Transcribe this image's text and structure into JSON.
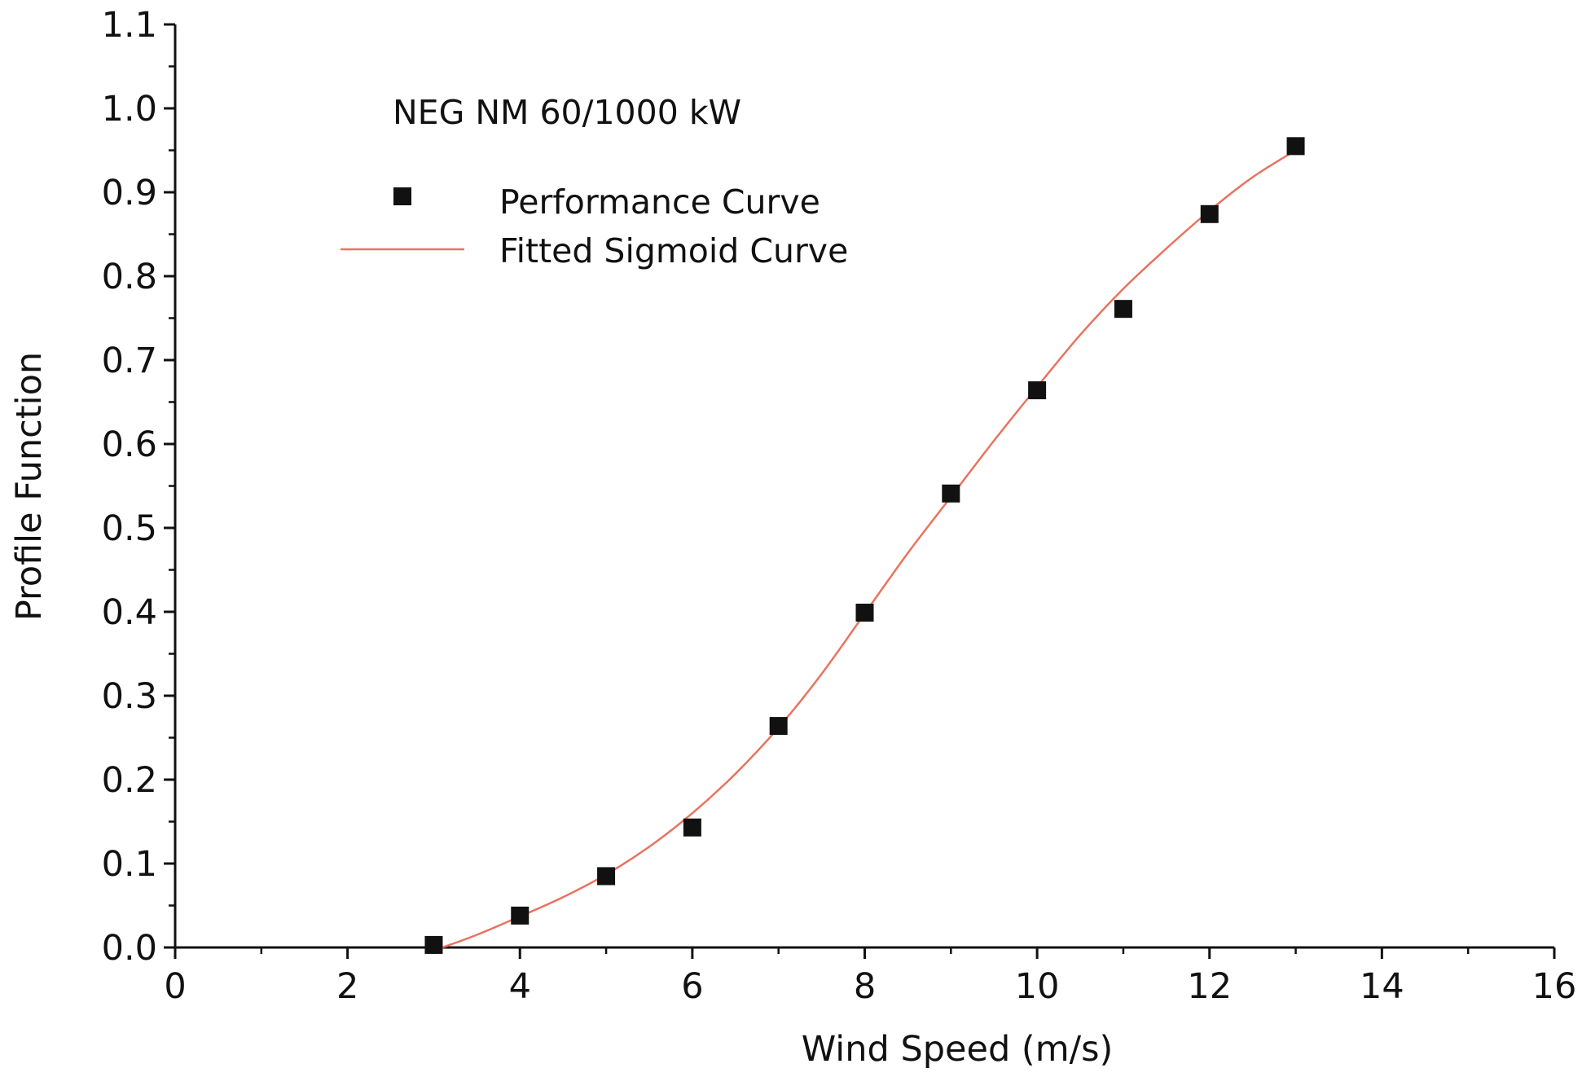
{
  "chart_data": {
    "type": "scatter",
    "title": "NEG NM 60/1000 kW",
    "xlabel": "Wind Speed (m/s)",
    "ylabel": "Profile Function",
    "xlim": [
      0,
      16
    ],
    "ylim": [
      0,
      1.1
    ],
    "grid": false,
    "legend_position": "top-left",
    "x_ticks": [
      {
        "value": 0,
        "label": "0"
      },
      {
        "value": 2,
        "label": "2"
      },
      {
        "value": 4,
        "label": "4"
      },
      {
        "value": 6,
        "label": "6"
      },
      {
        "value": 8,
        "label": "8"
      },
      {
        "value": 10,
        "label": "10"
      },
      {
        "value": 12,
        "label": "12"
      },
      {
        "value": 14,
        "label": "14"
      },
      {
        "value": 16,
        "label": "16"
      }
    ],
    "y_ticks": [
      {
        "value": 0.0,
        "label": "0.0"
      },
      {
        "value": 0.1,
        "label": "0.1"
      },
      {
        "value": 0.2,
        "label": "0.2"
      },
      {
        "value": 0.3,
        "label": "0.3"
      },
      {
        "value": 0.4,
        "label": "0.4"
      },
      {
        "value": 0.5,
        "label": "0.5"
      },
      {
        "value": 0.6,
        "label": "0.6"
      },
      {
        "value": 0.7,
        "label": "0.7"
      },
      {
        "value": 0.8,
        "label": "0.8"
      },
      {
        "value": 0.9,
        "label": "0.9"
      },
      {
        "value": 1.0,
        "label": "1.0"
      },
      {
        "value": 1.1,
        "label": "1.1"
      }
    ],
    "series": [
      {
        "name": "Performance Curve",
        "kind": "points",
        "marker": "square",
        "color": "#111111",
        "x": [
          3,
          4,
          5,
          6,
          7,
          8,
          9,
          10,
          11,
          12,
          13
        ],
        "y": [
          0.003,
          0.038,
          0.085,
          0.143,
          0.264,
          0.399,
          0.541,
          0.664,
          0.761,
          0.874,
          0.955
        ]
      },
      {
        "name": "Fitted Sigmoid Curve",
        "kind": "line",
        "color": "#e8735f",
        "x": [
          3.1,
          3.5,
          4.0,
          4.5,
          5.0,
          5.5,
          6.0,
          6.5,
          7.0,
          7.5,
          8.0,
          8.5,
          9.0,
          9.5,
          10.0,
          10.5,
          11.0,
          11.5,
          12.0,
          12.5,
          13.0
        ],
        "y": [
          0.0,
          0.015,
          0.037,
          0.06,
          0.087,
          0.12,
          0.16,
          0.207,
          0.262,
          0.326,
          0.398,
          0.47,
          0.537,
          0.604,
          0.668,
          0.73,
          0.785,
          0.833,
          0.878,
          0.918,
          0.95
        ]
      }
    ]
  }
}
